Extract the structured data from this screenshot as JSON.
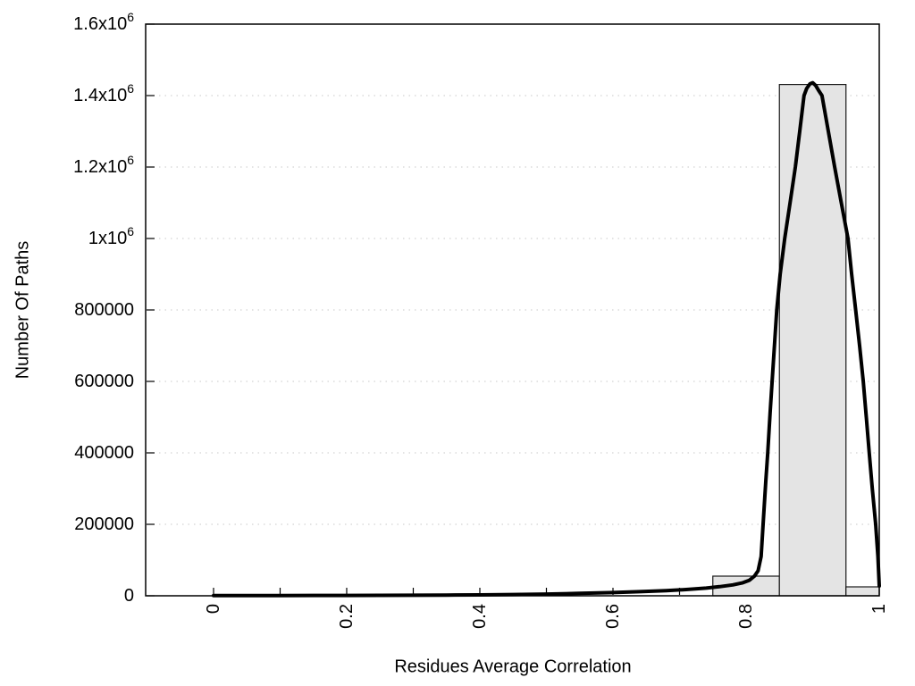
{
  "chart_data": {
    "type": "bar",
    "subtype": "histogram-with-fit-curve",
    "title": "",
    "xlabel": "Residues Average Correlation",
    "ylabel": "Number Of Paths",
    "xlim": [
      -0.102,
      1.0
    ],
    "ylim": [
      0,
      1600000
    ],
    "grid": {
      "style": "dotted",
      "y_values": [
        200000,
        400000,
        600000,
        800000,
        1000000,
        1200000,
        1400000
      ]
    },
    "x_minor_tick_step": 0.1,
    "x_ticks": [
      {
        "v": 0.0,
        "label": "0"
      },
      {
        "v": 0.2,
        "label": "0.2"
      },
      {
        "v": 0.4,
        "label": "0.4"
      },
      {
        "v": 0.6,
        "label": "0.6"
      },
      {
        "v": 0.8,
        "label": "0.8"
      },
      {
        "v": 1.0,
        "label": "1"
      }
    ],
    "y_ticks": [
      {
        "v": 0,
        "label": "0"
      },
      {
        "v": 200000,
        "label": "200000"
      },
      {
        "v": 400000,
        "label": "400000"
      },
      {
        "v": 600000,
        "label": "600000"
      },
      {
        "v": 800000,
        "label": "800000"
      },
      {
        "v": 1000000,
        "label": "1x10^6"
      },
      {
        "v": 1200000,
        "label": "1.2x10^6"
      },
      {
        "v": 1400000,
        "label": "1.4x10^6"
      },
      {
        "v": 1600000,
        "label": "1.6x10^6"
      }
    ],
    "bars": [
      {
        "x0": 0.75,
        "x1": 0.85,
        "value": 55000
      },
      {
        "x0": 0.85,
        "x1": 0.95,
        "value": 1431000
      },
      {
        "x0": 0.95,
        "x1": 1.0,
        "value": 25000
      }
    ],
    "curve": [
      [
        0.0,
        800
      ],
      [
        0.05,
        800
      ],
      [
        0.1,
        800
      ],
      [
        0.15,
        900
      ],
      [
        0.2,
        1000
      ],
      [
        0.25,
        1200
      ],
      [
        0.3,
        1500
      ],
      [
        0.35,
        1900
      ],
      [
        0.4,
        2500
      ],
      [
        0.45,
        3400
      ],
      [
        0.5,
        4800
      ],
      [
        0.55,
        6800
      ],
      [
        0.6,
        9000
      ],
      [
        0.64,
        11500
      ],
      [
        0.68,
        14500
      ],
      [
        0.71,
        17500
      ],
      [
        0.74,
        21500
      ],
      [
        0.76,
        25500
      ],
      [
        0.78,
        30500
      ],
      [
        0.795,
        36500
      ],
      [
        0.805,
        43500
      ],
      [
        0.8125,
        55000
      ],
      [
        0.818,
        70000
      ],
      [
        0.8225,
        110000
      ],
      [
        0.8255,
        200000
      ],
      [
        0.8295,
        320000
      ],
      [
        0.8325,
        400000
      ],
      [
        0.836,
        510000
      ],
      [
        0.839,
        600000
      ],
      [
        0.8425,
        700000
      ],
      [
        0.846,
        800000
      ],
      [
        0.8512,
        900000
      ],
      [
        0.858,
        1000000
      ],
      [
        0.866,
        1100000
      ],
      [
        0.874,
        1200000
      ],
      [
        0.8805,
        1300000
      ],
      [
        0.887,
        1400000
      ],
      [
        0.891,
        1420000
      ],
      [
        0.896,
        1433000
      ],
      [
        0.9,
        1436000
      ],
      [
        0.9045,
        1428000
      ],
      [
        0.909,
        1414000
      ],
      [
        0.914,
        1400000
      ],
      [
        0.9235,
        1300000
      ],
      [
        0.933,
        1200000
      ],
      [
        0.943,
        1100000
      ],
      [
        0.953,
        1000000
      ],
      [
        0.9585,
        900000
      ],
      [
        0.9645,
        800000
      ],
      [
        0.9705,
        700000
      ],
      [
        0.976,
        600000
      ],
      [
        0.9805,
        500000
      ],
      [
        0.985,
        400000
      ],
      [
        0.9895,
        300000
      ],
      [
        0.9946,
        200000
      ],
      [
        0.998,
        110000
      ],
      [
        1.0,
        27500
      ]
    ],
    "colors": {
      "background": "#ffffff",
      "bar_fill": "#e4e4e4",
      "bar_border": "#1a1a1a",
      "curve": "#000000",
      "grid": "#c8c8c8",
      "axis": "#000000",
      "text": "#000000"
    }
  }
}
